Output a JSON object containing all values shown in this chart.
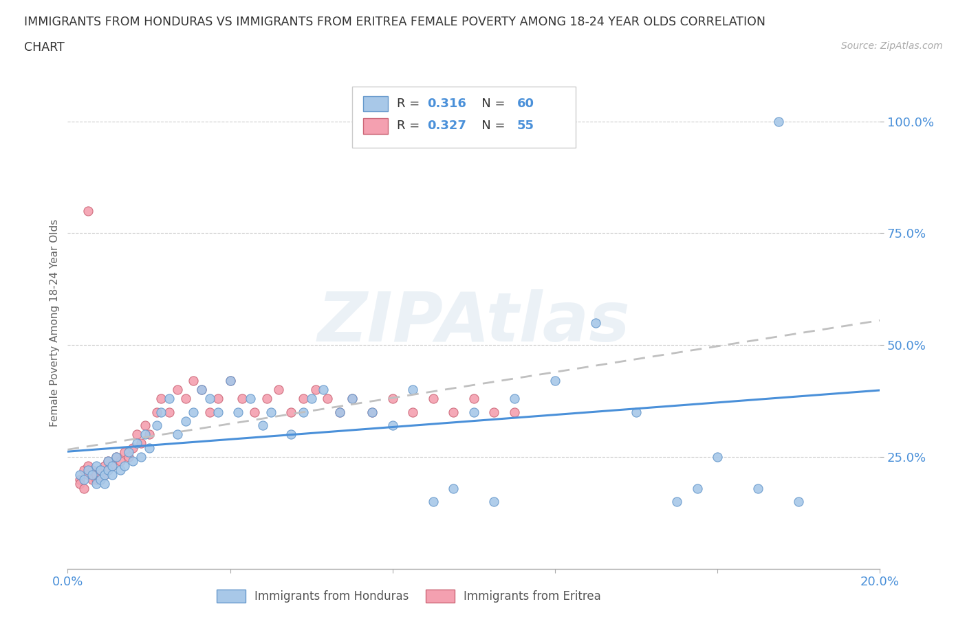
{
  "title_line1": "IMMIGRANTS FROM HONDURAS VS IMMIGRANTS FROM ERITREA FEMALE POVERTY AMONG 18-24 YEAR OLDS CORRELATION",
  "title_line2": "CHART",
  "source": "Source: ZipAtlas.com",
  "ylabel": "Female Poverty Among 18-24 Year Olds",
  "xlim": [
    0.0,
    0.2
  ],
  "ylim": [
    0.0,
    1.1
  ],
  "xtick_pos": [
    0.0,
    0.04,
    0.08,
    0.12,
    0.16,
    0.2
  ],
  "xtick_labels": [
    "0.0%",
    "",
    "",
    "",
    "",
    "20.0%"
  ],
  "ytick_pos": [
    0.25,
    0.5,
    0.75,
    1.0
  ],
  "ytick_labels": [
    "25.0%",
    "50.0%",
    "75.0%",
    "100.0%"
  ],
  "honduras_color": "#a8c8e8",
  "honduras_edge": "#6699cc",
  "eritrea_color": "#f4a0b0",
  "eritrea_edge": "#cc6677",
  "trend_honduras_color": "#4a90d9",
  "trend_eritrea_color": "#c0c0c0",
  "R_honduras": 0.316,
  "N_honduras": 60,
  "R_eritrea": 0.327,
  "N_eritrea": 55,
  "watermark": "ZIPAtlas",
  "honduras_x": [
    0.003,
    0.004,
    0.005,
    0.006,
    0.007,
    0.007,
    0.008,
    0.008,
    0.009,
    0.009,
    0.01,
    0.01,
    0.011,
    0.011,
    0.012,
    0.013,
    0.014,
    0.015,
    0.016,
    0.017,
    0.018,
    0.019,
    0.02,
    0.022,
    0.023,
    0.025,
    0.027,
    0.029,
    0.031,
    0.033,
    0.035,
    0.037,
    0.04,
    0.042,
    0.045,
    0.048,
    0.05,
    0.055,
    0.058,
    0.06,
    0.063,
    0.067,
    0.07,
    0.075,
    0.08,
    0.085,
    0.09,
    0.095,
    0.1,
    0.105,
    0.11,
    0.12,
    0.13,
    0.14,
    0.15,
    0.155,
    0.16,
    0.17,
    0.18,
    0.175
  ],
  "honduras_y": [
    0.21,
    0.2,
    0.22,
    0.21,
    0.19,
    0.23,
    0.2,
    0.22,
    0.21,
    0.19,
    0.22,
    0.24,
    0.23,
    0.21,
    0.25,
    0.22,
    0.23,
    0.26,
    0.24,
    0.28,
    0.25,
    0.3,
    0.27,
    0.32,
    0.35,
    0.38,
    0.3,
    0.33,
    0.35,
    0.4,
    0.38,
    0.35,
    0.42,
    0.35,
    0.38,
    0.32,
    0.35,
    0.3,
    0.35,
    0.38,
    0.4,
    0.35,
    0.38,
    0.35,
    0.32,
    0.4,
    0.15,
    0.18,
    0.35,
    0.15,
    0.38,
    0.42,
    0.55,
    0.35,
    0.15,
    0.18,
    0.25,
    0.18,
    0.15,
    1.0
  ],
  "eritrea_x": [
    0.003,
    0.004,
    0.005,
    0.005,
    0.006,
    0.006,
    0.007,
    0.007,
    0.008,
    0.008,
    0.009,
    0.009,
    0.01,
    0.01,
    0.011,
    0.012,
    0.013,
    0.014,
    0.015,
    0.016,
    0.017,
    0.018,
    0.019,
    0.02,
    0.022,
    0.023,
    0.025,
    0.027,
    0.029,
    0.031,
    0.033,
    0.035,
    0.037,
    0.04,
    0.043,
    0.046,
    0.049,
    0.052,
    0.055,
    0.058,
    0.061,
    0.064,
    0.067,
    0.07,
    0.075,
    0.08,
    0.085,
    0.09,
    0.095,
    0.1,
    0.105,
    0.11,
    0.003,
    0.004,
    0.005
  ],
  "eritrea_y": [
    0.2,
    0.22,
    0.21,
    0.23,
    0.2,
    0.22,
    0.2,
    0.21,
    0.22,
    0.2,
    0.21,
    0.23,
    0.22,
    0.24,
    0.23,
    0.25,
    0.24,
    0.26,
    0.25,
    0.27,
    0.3,
    0.28,
    0.32,
    0.3,
    0.35,
    0.38,
    0.35,
    0.4,
    0.38,
    0.42,
    0.4,
    0.35,
    0.38,
    0.42,
    0.38,
    0.35,
    0.38,
    0.4,
    0.35,
    0.38,
    0.4,
    0.38,
    0.35,
    0.38,
    0.35,
    0.38,
    0.35,
    0.38,
    0.35,
    0.38,
    0.35,
    0.35,
    0.19,
    0.18,
    0.8
  ]
}
